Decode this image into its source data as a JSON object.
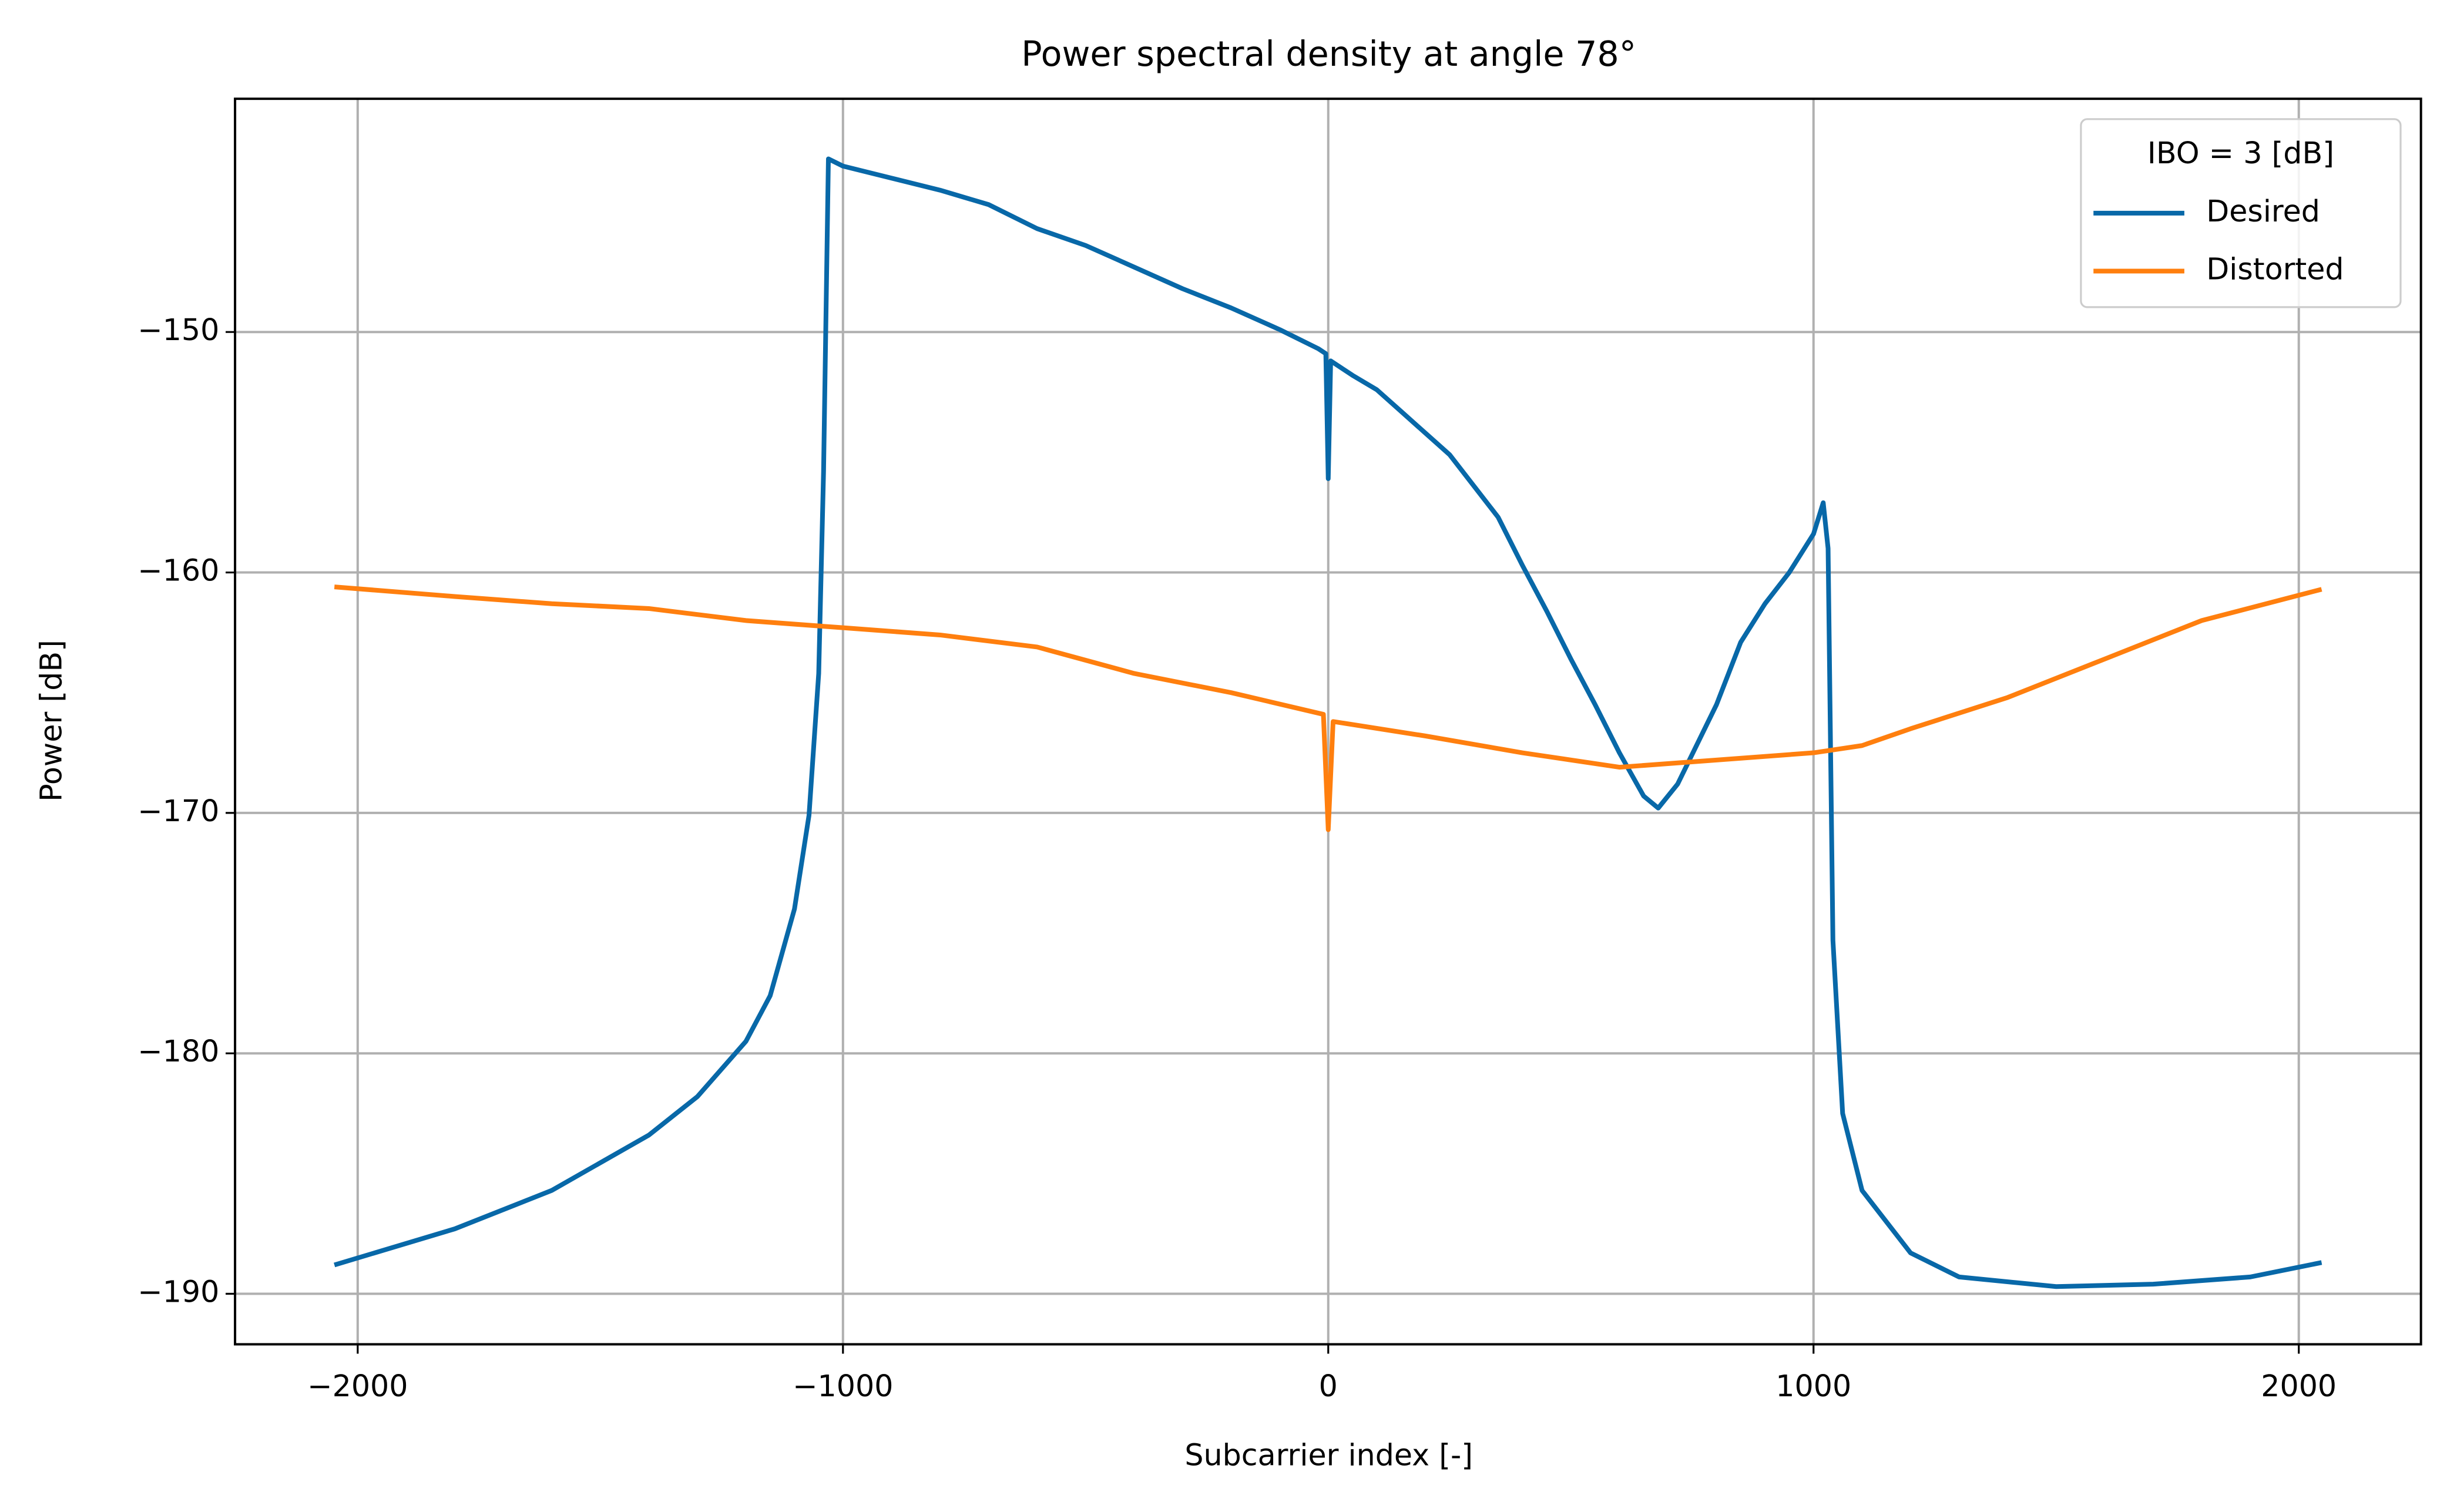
{
  "chart_data": {
    "type": "line",
    "title": "Power spectral density at angle 78°",
    "x_label": "Subcarrier index [-]",
    "y_label": "Power [dB]",
    "legend_title": "IBO = 3 [dB]",
    "legend_position": "upper right",
    "grid": true,
    "xlim": [
      -2252.75,
      2251.75
    ],
    "ylim": [
      -192.1,
      -140.3
    ],
    "xticks": [
      {
        "value": -2000,
        "label": "−2000"
      },
      {
        "value": -1000,
        "label": "−1000"
      },
      0,
      1000,
      2000
    ],
    "yticks": [
      {
        "value": -190,
        "label": "−190"
      },
      {
        "value": -180,
        "label": "−180"
      },
      {
        "value": -170,
        "label": "−170"
      },
      {
        "value": -160,
        "label": "−160"
      },
      {
        "value": -150,
        "label": "−150"
      }
    ],
    "series": [
      {
        "name": "Desired",
        "color": "#0868a8",
        "x": [
          -2048,
          -1800,
          -1600,
          -1400,
          -1300,
          -1200,
          -1150,
          -1100,
          -1070,
          -1050,
          -1040,
          -1030,
          -1000,
          -900,
          -800,
          -700,
          -600,
          -500,
          -400,
          -300,
          -200,
          -100,
          -20,
          -5,
          0,
          5,
          50,
          100,
          150,
          200,
          250,
          300,
          350,
          400,
          450,
          500,
          550,
          600,
          650,
          680,
          720,
          800,
          850,
          900,
          950,
          1000,
          1020,
          1030,
          1040,
          1060,
          1100,
          1200,
          1300,
          1500,
          1700,
          1900,
          2047
        ],
        "values": [
          -188.8,
          -187.3,
          -185.7,
          -183.4,
          -181.8,
          -179.5,
          -177.6,
          -174.0,
          -170.1,
          -164.2,
          -155.8,
          -142.8,
          -143.1,
          -143.6,
          -144.1,
          -144.7,
          -145.7,
          -146.4,
          -147.3,
          -148.2,
          -149.0,
          -149.9,
          -150.7,
          -150.9,
          -156.1,
          -151.2,
          -151.8,
          -152.4,
          -153.3,
          -154.2,
          -155.1,
          -156.4,
          -157.7,
          -159.7,
          -161.6,
          -163.6,
          -165.5,
          -167.5,
          -169.3,
          -169.8,
          -168.8,
          -165.5,
          -162.9,
          -161.3,
          -160.0,
          -158.4,
          -157.1,
          -159.0,
          -175.3,
          -182.5,
          -185.7,
          -188.3,
          -189.3,
          -189.7,
          -189.6,
          -189.3,
          -188.7
        ]
      },
      {
        "name": "Distorted",
        "color": "#ff7f0e",
        "x": [
          -2048,
          -1800,
          -1600,
          -1400,
          -1200,
          -1000,
          -800,
          -600,
          -400,
          -200,
          -10,
          0,
          10,
          200,
          400,
          600,
          800,
          1000,
          1100,
          1200,
          1400,
          1600,
          1800,
          2047
        ],
        "values": [
          -160.6,
          -161.0,
          -161.3,
          -161.5,
          -162.0,
          -162.3,
          -162.6,
          -163.1,
          -164.2,
          -165.0,
          -165.9,
          -170.7,
          -166.2,
          -166.8,
          -167.5,
          -168.1,
          -167.8,
          -167.5,
          -167.2,
          -166.5,
          -165.2,
          -163.6,
          -162.0,
          -160.7
        ]
      }
    ]
  }
}
